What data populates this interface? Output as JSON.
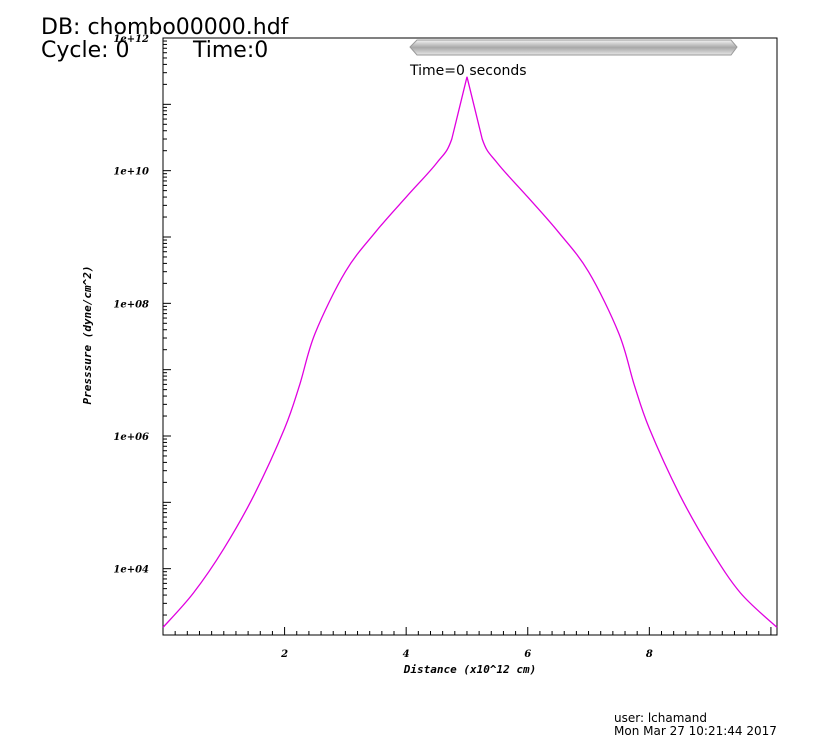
{
  "header": {
    "db_label": "DB: chombo00000.hdf",
    "cycle_label": "Cycle: 0",
    "time_label": "Time:0"
  },
  "time_slider": {
    "label": "Time=0 seconds",
    "position": 0.0
  },
  "footer": {
    "user": "user: lchamand",
    "date": "Mon Mar 27 10:21:44 2017"
  },
  "colors": {
    "series": "#e000e0",
    "axis": "#000000",
    "slider": "#c8c8c8"
  },
  "chart_data": {
    "type": "line",
    "title": "",
    "xlabel": "Distance (x10^12 cm)",
    "ylabel": "Presssure (dyne/cm^2)",
    "xlim": [
      0,
      10.1
    ],
    "ylim": [
      1000,
      1000000000000
    ],
    "yscale": "log",
    "x_ticks": [
      {
        "value": 2,
        "label": "2"
      },
      {
        "value": 4,
        "label": "4"
      },
      {
        "value": 6,
        "label": "6"
      },
      {
        "value": 8,
        "label": "8"
      }
    ],
    "y_ticks": [
      {
        "value": 10000,
        "label": "1e+04"
      },
      {
        "value": 1000000,
        "label": "1e+06"
      },
      {
        "value": 100000000,
        "label": "1e+08"
      },
      {
        "value": 10000000000,
        "label": "1e+10"
      },
      {
        "value": 1000000000000,
        "label": "1e+12"
      }
    ],
    "grid": false,
    "series": [
      {
        "color": "#e000e0",
        "x": [
          0,
          0.5,
          1.0,
          1.5,
          2.0,
          2.25,
          2.5,
          3.0,
          3.5,
          4.0,
          4.5,
          4.75,
          5.0,
          5.25,
          5.5,
          6.0,
          6.5,
          7.0,
          7.5,
          7.75,
          8.0,
          8.5,
          9.0,
          9.5,
          10.1
        ],
        "y": [
          1300,
          4300,
          20000,
          130000,
          1300000,
          6000000,
          35000000,
          300000000,
          1200000000,
          4000000000,
          13000000000,
          30000000000,
          260000000000,
          30000000000,
          13000000000,
          4000000000,
          1200000000,
          300000000,
          35000000,
          6000000,
          1300000,
          130000,
          20000,
          4300,
          1300
        ]
      }
    ]
  }
}
